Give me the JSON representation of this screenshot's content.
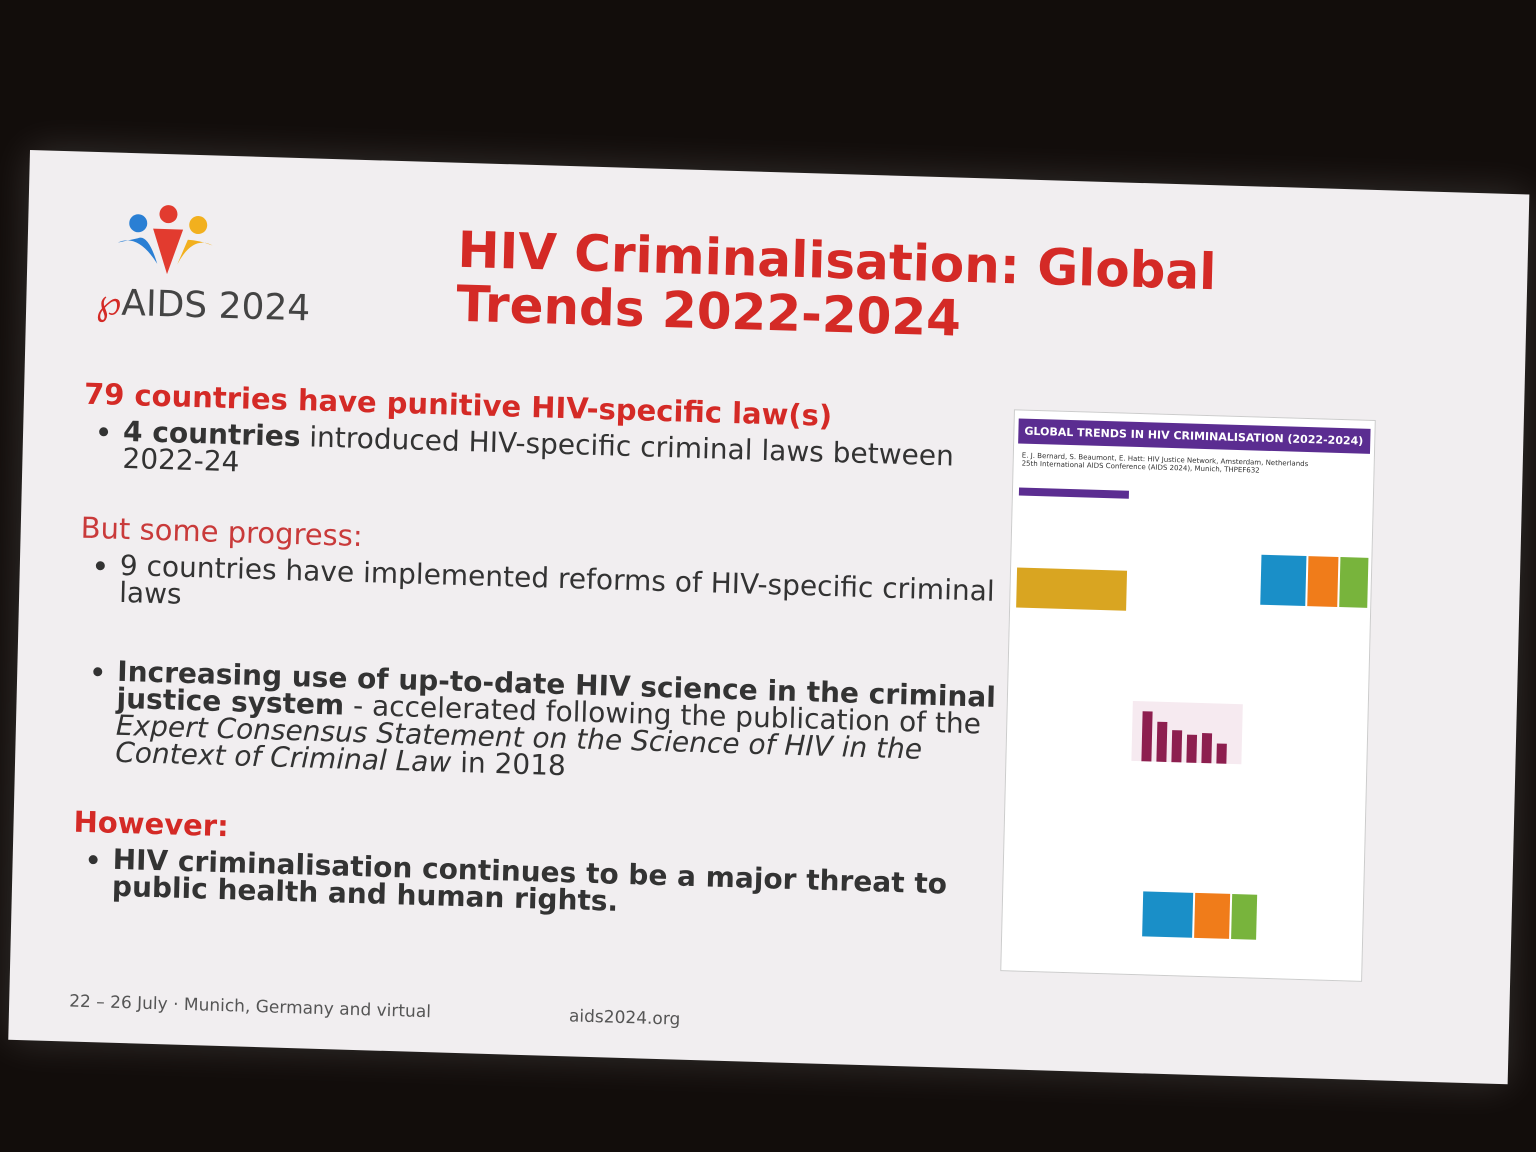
{
  "header": {
    "logo_text": "AIDS 2024",
    "title": "HIV Criminalisation: Global Trends 2022-2024"
  },
  "sections": [
    {
      "heading": "79 countries have punitive HIV-specific law(s)",
      "bullets": [
        {
          "parts": [
            "4 countries",
            " introduced HIV-specific criminal laws between 2022-24"
          ]
        }
      ]
    },
    {
      "heading": "But some progress:",
      "bullets": [
        {
          "parts": [
            "9 countries have implemented reforms of HIV-specific criminal laws"
          ]
        },
        {
          "parts": [
            "Increasing use of up-to-date HIV science in the criminal justice system",
            " - accelerated following the publication of the ",
            "Expert Consensus Statement on the Science of HIV in the Context of Criminal Law",
            " in 2018"
          ]
        }
      ]
    },
    {
      "heading": "However:",
      "bullets": [
        {
          "parts": [
            "HIV criminalisation continues to be a major threat to public health and human rights."
          ]
        }
      ]
    }
  ],
  "poster": {
    "title": "GLOBAL TRENDS IN HIV CRIMINALISATION (2022-2024)",
    "authors": "E. J. Bernard, S. Beaumont, E. Hatt: HIV Justice Network, Amsterdam, Netherlands",
    "conference": "25th International AIDS Conference (AIDS 2024), Munich, THPEF632"
  },
  "footer": {
    "dates": "22 – 26 July · Munich, Germany and virtual",
    "url": "aids2024.org"
  }
}
